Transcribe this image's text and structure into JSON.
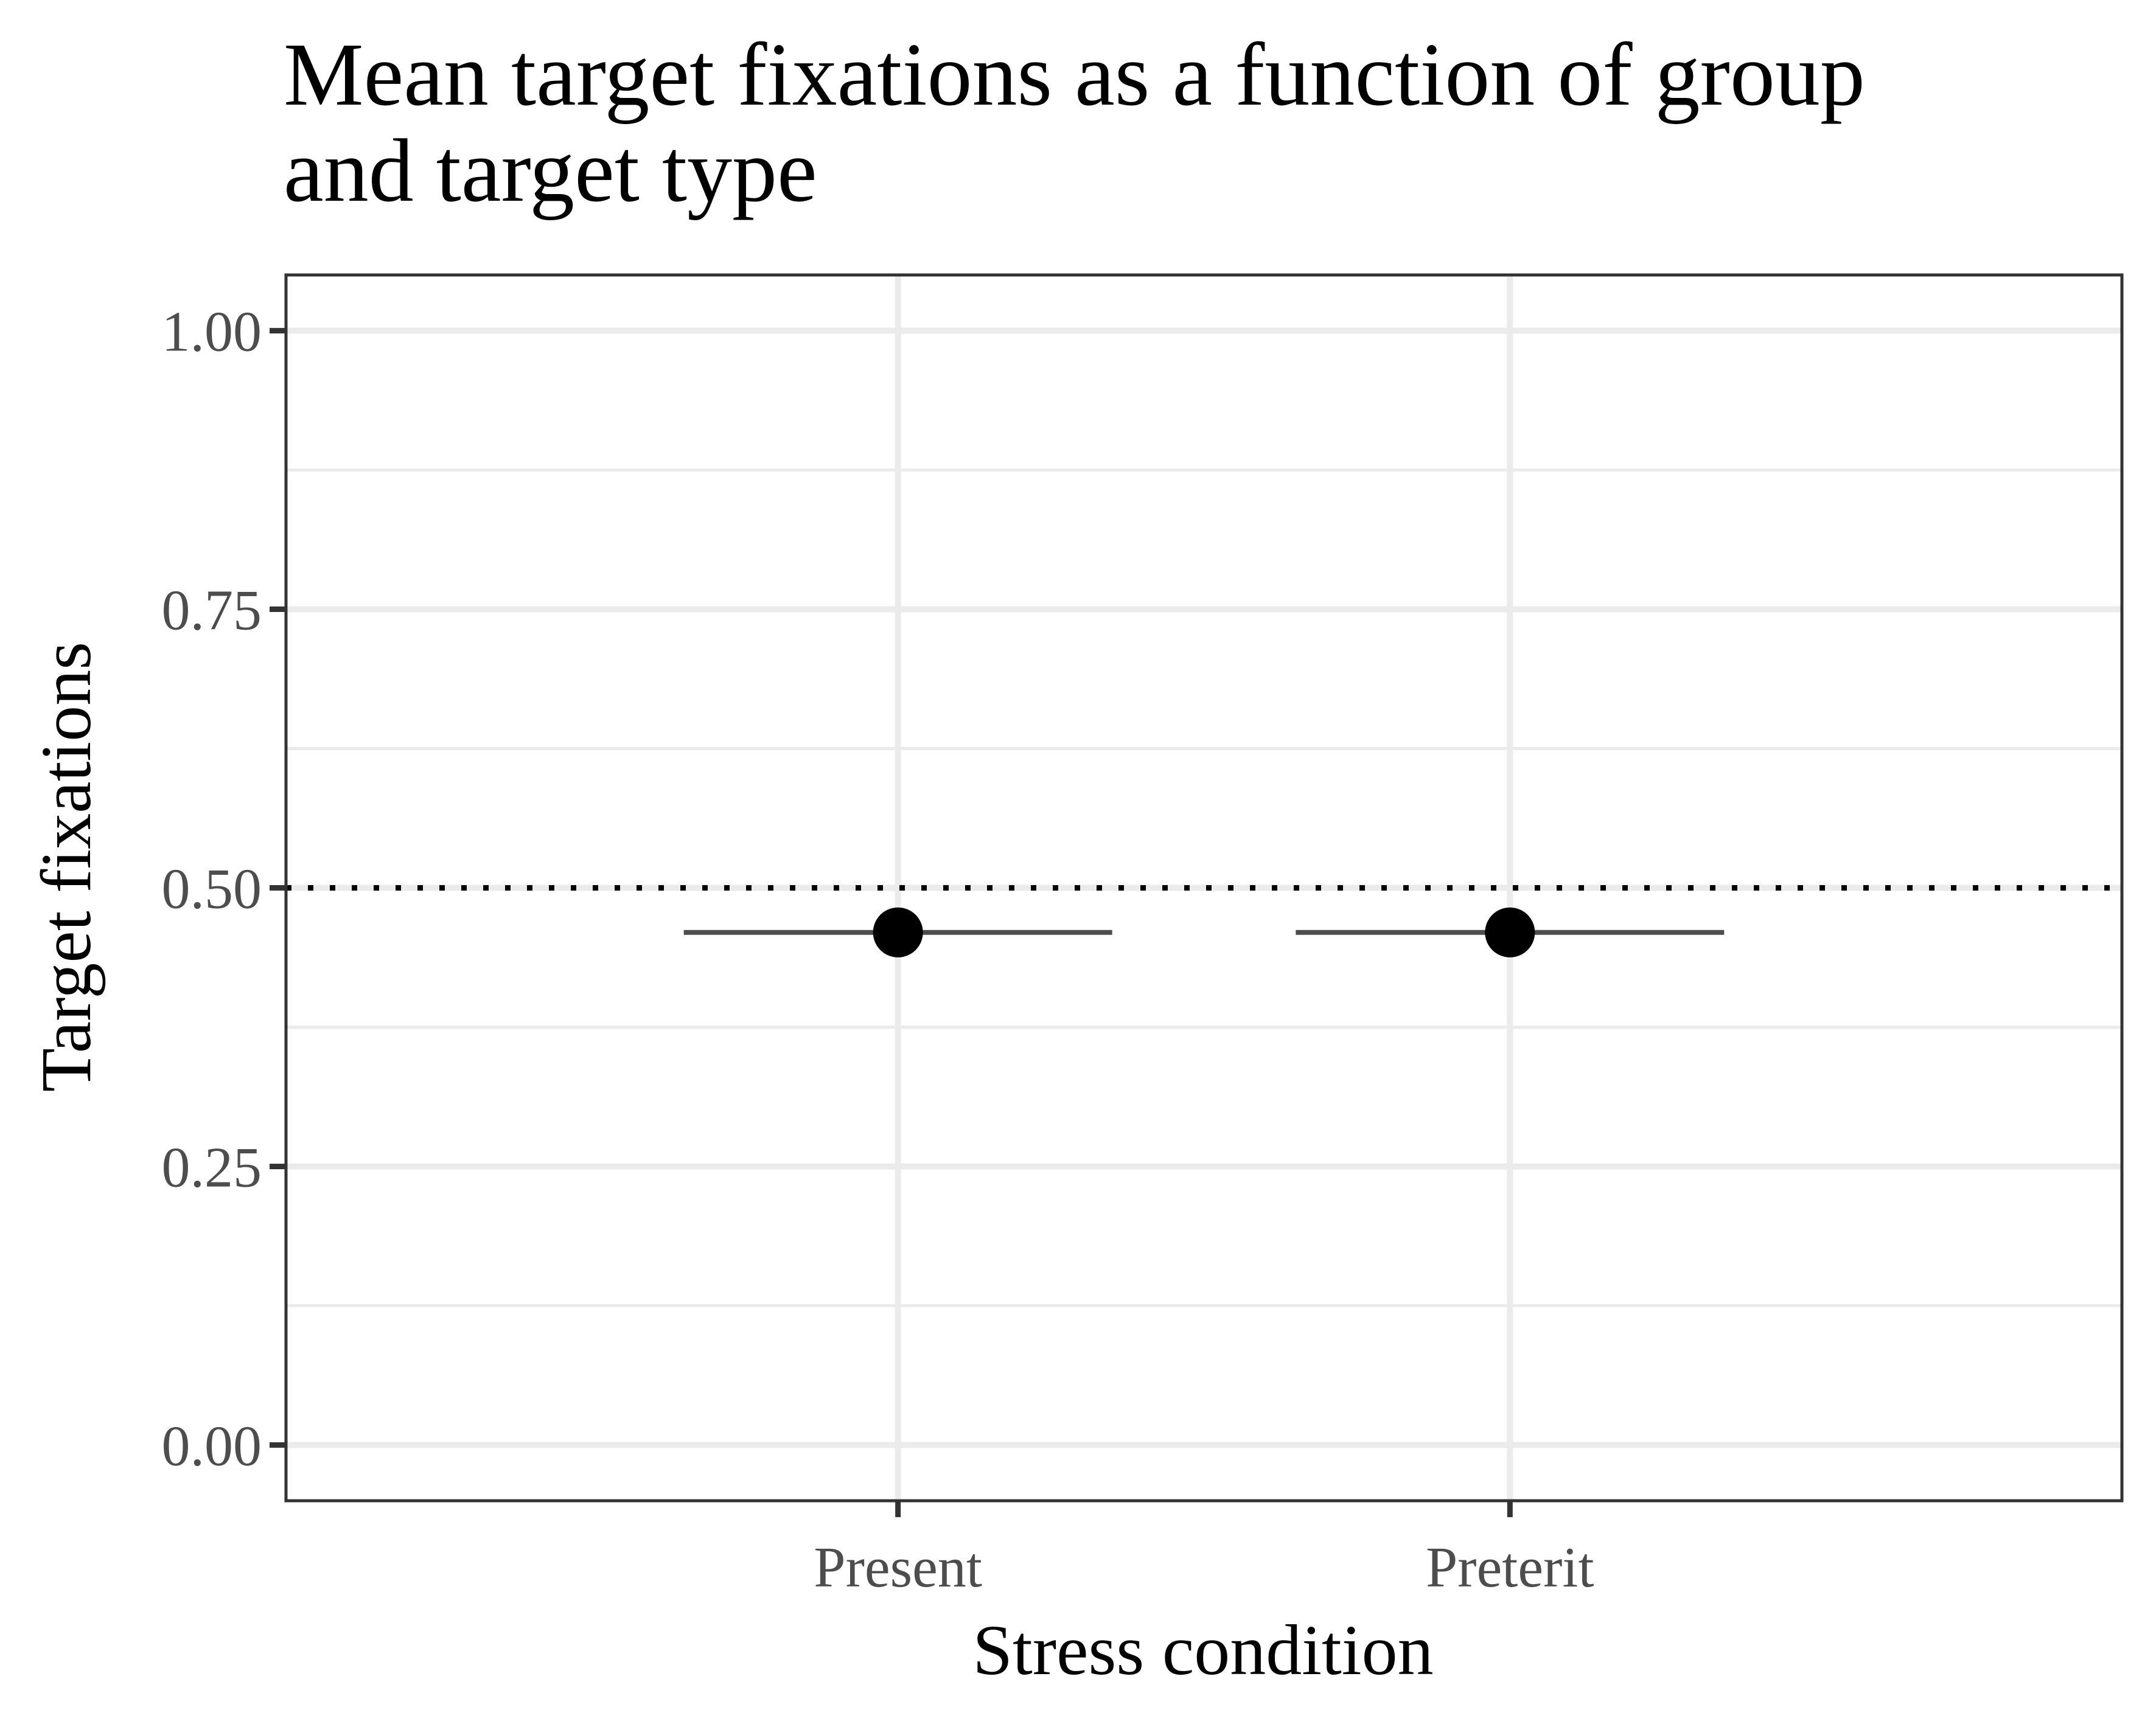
{
  "chart_data": {
    "type": "scatter",
    "title_lines": [
      "Mean target fixations as a function of group",
      "and target type"
    ],
    "xlabel": "Stress condition",
    "ylabel": "Target fixations",
    "categories": [
      "Present",
      "Preterit"
    ],
    "points": [
      {
        "category": "Present",
        "y": 0.46,
        "xerr_left": 0.35,
        "xerr_right": 0.35
      },
      {
        "category": "Preterit",
        "y": 0.46,
        "xerr_left": 0.35,
        "xerr_right": 0.35
      }
    ],
    "reference_line": {
      "y": 0.5,
      "style": "dotted"
    },
    "ylim": [
      -0.05,
      1.05
    ],
    "y_ticks": [
      0.0,
      0.25,
      0.5,
      0.75,
      1.0
    ],
    "y_tick_labels": [
      "0.00",
      "0.25",
      "0.50",
      "0.75",
      "1.00"
    ],
    "y_minor_ticks": [
      0.125,
      0.375,
      0.625,
      0.875
    ],
    "grid": true,
    "legend": "none",
    "colors": {
      "point": "#000000",
      "errorbar": "#4d4d4d",
      "grid": "#ebebeb",
      "panel_border": "#333333",
      "reference": "#000000"
    }
  }
}
